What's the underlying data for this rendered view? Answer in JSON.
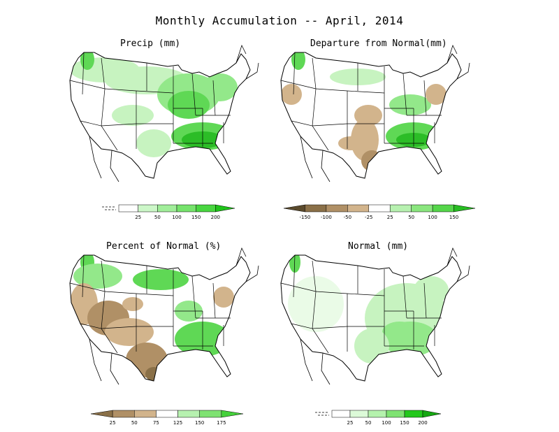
{
  "title": "Monthly Accumulation -- April, 2014",
  "panels": [
    {
      "id": "precip",
      "title": "Precip (mm)",
      "legend": {
        "ticks": [
          "25",
          "50",
          "100",
          "150",
          "200"
        ],
        "colors": [
          "#ffffff",
          "#ccf7c8",
          "#a1ee9a",
          "#76e36c",
          "#49d640",
          "#20c31a"
        ]
      }
    },
    {
      "id": "departure",
      "title": "Departure from Normal(mm)",
      "legend": {
        "ticks": [
          "-150",
          "-100",
          "-50",
          "-25",
          "25",
          "50",
          "100",
          "150"
        ],
        "colors": [
          "#5a4a2c",
          "#8a7048",
          "#b09066",
          "#d2b48c",
          "#ffffff",
          "#b7f1b0",
          "#8ae67e",
          "#55d64a",
          "#27bd22"
        ]
      }
    },
    {
      "id": "percent",
      "title": "Percent of Normal (%)",
      "legend": {
        "ticks": [
          "25",
          "50",
          "75",
          "125",
          "150",
          "175"
        ],
        "colors": [
          "#8a7048",
          "#b09066",
          "#d2b48c",
          "#ffffff",
          "#b7f1b0",
          "#7fe272",
          "#45d13b"
        ]
      }
    },
    {
      "id": "normal",
      "title": "Normal (mm)",
      "legend": {
        "ticks": [
          "25",
          "50",
          "100",
          "150",
          "200"
        ],
        "colors": [
          "#ffffff",
          "#dcfad8",
          "#b5f2ad",
          "#7fe272",
          "#23c81c",
          "#15a812"
        ]
      }
    }
  ]
}
